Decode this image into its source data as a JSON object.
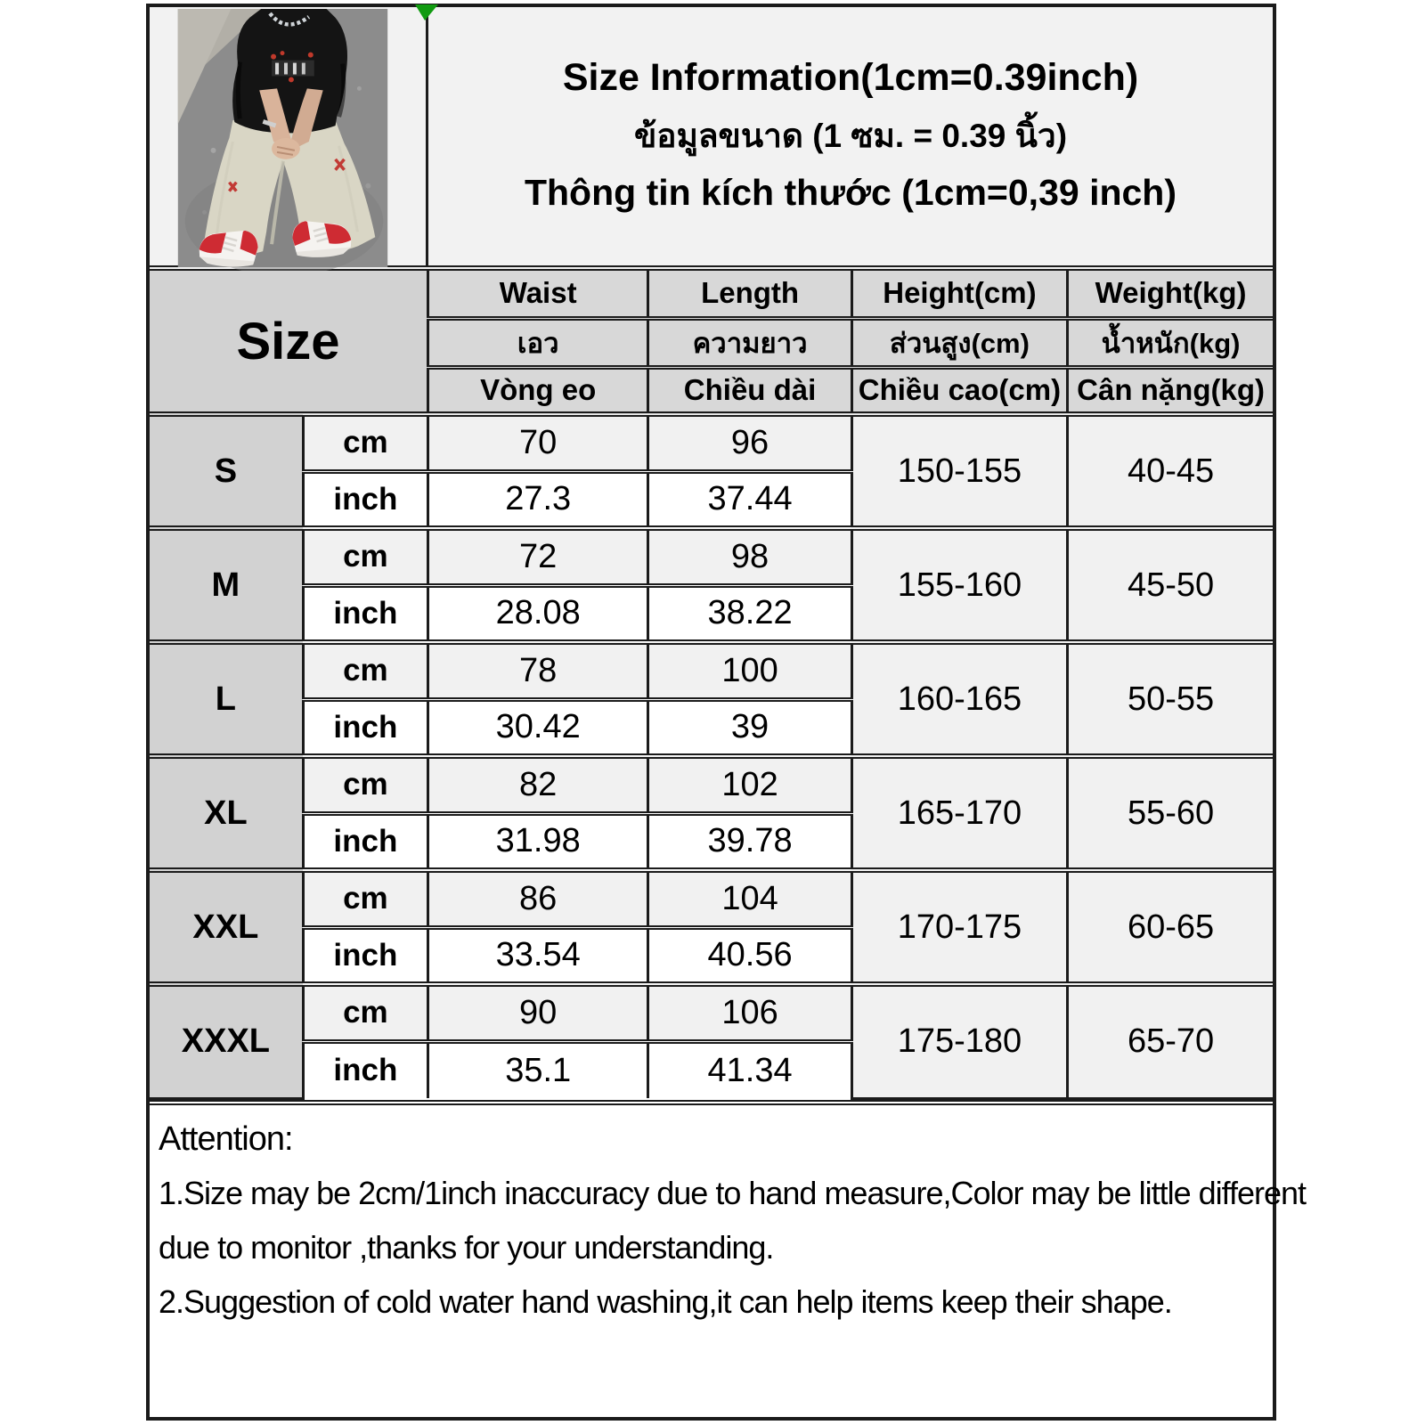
{
  "title": {
    "en": "Size Information(1cm=0.39inch)",
    "th": "ข้อมูลขนาด (1 ซม. = 0.39 นิ้ว)",
    "vi": "Thông tin kích thước (1cm=0,39 inch)"
  },
  "table": {
    "size_label": "Size",
    "unit_labels": {
      "cm": "cm",
      "inch": "inch"
    },
    "columns": {
      "waist": {
        "en": "Waist",
        "th": "เอว",
        "vi": "Vòng eo"
      },
      "length": {
        "en": "Length",
        "th": "ความยาว",
        "vi": "Chiều dài"
      },
      "height": {
        "en": "Height(cm)",
        "th": "ส่วนสูง(cm)",
        "vi": "Chiều cao(cm)"
      },
      "weight": {
        "en": "Weight(kg)",
        "th": "น้ำหนัก(kg)",
        "vi": "Cân nặng(kg)"
      }
    },
    "rows": [
      {
        "size": "S",
        "cm": {
          "waist": "70",
          "length": "96"
        },
        "inch": {
          "waist": "27.3",
          "length": "37.44"
        },
        "height": "150-155",
        "weight": "40-45"
      },
      {
        "size": "M",
        "cm": {
          "waist": "72",
          "length": "98"
        },
        "inch": {
          "waist": "28.08",
          "length": "38.22"
        },
        "height": "155-160",
        "weight": "45-50"
      },
      {
        "size": "L",
        "cm": {
          "waist": "78",
          "length": "100"
        },
        "inch": {
          "waist": "30.42",
          "length": "39"
        },
        "height": "160-165",
        "weight": "50-55"
      },
      {
        "size": "XL",
        "cm": {
          "waist": "82",
          "length": "102"
        },
        "inch": {
          "waist": "31.98",
          "length": "39.78"
        },
        "height": "165-170",
        "weight": "55-60"
      },
      {
        "size": "XXL",
        "cm": {
          "waist": "86",
          "length": "104"
        },
        "inch": {
          "waist": "33.54",
          "length": "40.56"
        },
        "height": "170-175",
        "weight": "60-65"
      },
      {
        "size": "XXXL",
        "cm": {
          "waist": "90",
          "length": "106"
        },
        "inch": {
          "waist": "35.1",
          "length": "41.34"
        },
        "height": "175-180",
        "weight": "65-70"
      }
    ]
  },
  "attention": {
    "heading": "Attention:",
    "lines": [
      "1.Size may be 2cm/1inch inaccuracy due to hand measure,Color may be little different",
      "due to monitor ,thanks for your understanding.",
      "2.Suggestion of cold water hand washing,it can help items keep their shape."
    ]
  },
  "photo": {
    "description": "model-sitting-on-asphalt-black-tee-light-baggy-jeans-red-white-sneakers"
  },
  "colors": {
    "border": "#1b1b1b",
    "header_gray": "#d8d8d8",
    "size_gray": "#d2d2d2",
    "row_light": "#f1f1f1",
    "row_white": "#ffffff",
    "panel_bg": "#f2f2f2",
    "green_marker": "#119b11",
    "text": "#000000"
  }
}
